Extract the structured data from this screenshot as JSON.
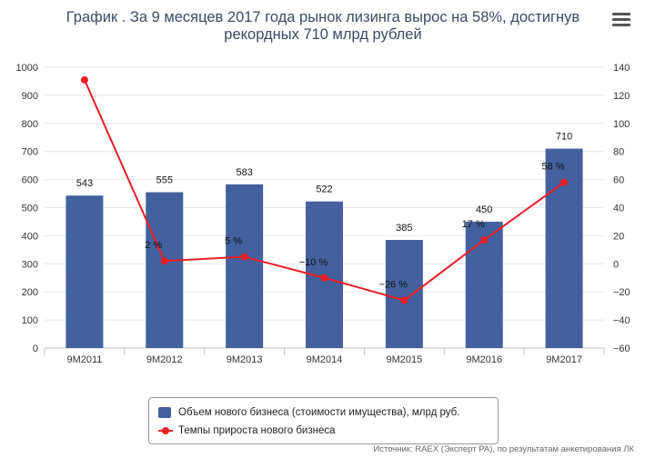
{
  "title": "График . За 9 месяцев 2017 года рынок лизинга вырос на 58%, достигнув рекордных 710 млрд рублей",
  "menu_icon": "hamburger-menu-icon",
  "colors": {
    "bar": "#43619e",
    "line": "#ee1c25",
    "grid": "#e6e6e6",
    "axis": "#c0c0d0"
  },
  "legend": {
    "bar_label": "Объем нового бизнеса (стоимости имущества), млрд руб.",
    "line_label": "Темпы прироста нового бизнеса"
  },
  "source": "Источник: RAEX (Эксперт РА), по результатам анкетирования ЛК",
  "chart_data": {
    "type": "bar+line",
    "categories": [
      "9M2011",
      "9M2012",
      "9M2013",
      "9M2014",
      "9M2015",
      "9M2016",
      "9M2017"
    ],
    "series": [
      {
        "name": "Объем нового бизнеса (стоимости имущества), млрд руб.",
        "type": "bar",
        "axis": "left",
        "values": [
          543,
          555,
          583,
          522,
          385,
          450,
          710
        ],
        "labels": [
          "543",
          "555",
          "583",
          "522",
          "385",
          "450",
          "710"
        ]
      },
      {
        "name": "Темпы прироста нового бизнеса",
        "type": "line",
        "axis": "right",
        "values": [
          131,
          2,
          5,
          -10,
          -26,
          17,
          58
        ],
        "labels": [
          "",
          "2 %",
          "5 %",
          "−10 %",
          "−26 %",
          "17 %",
          "58 %"
        ]
      }
    ],
    "y_left": {
      "min": 0,
      "max": 1000,
      "ticks": [
        0,
        100,
        200,
        300,
        400,
        500,
        600,
        700,
        800,
        900,
        1000
      ]
    },
    "y_right": {
      "min": -60,
      "max": 140,
      "ticks": [
        "−60",
        "−40",
        "−20",
        "0",
        "20",
        "40",
        "60",
        "80",
        "100",
        "120",
        "140"
      ]
    },
    "grid": true,
    "legend_position": "bottom-center"
  }
}
